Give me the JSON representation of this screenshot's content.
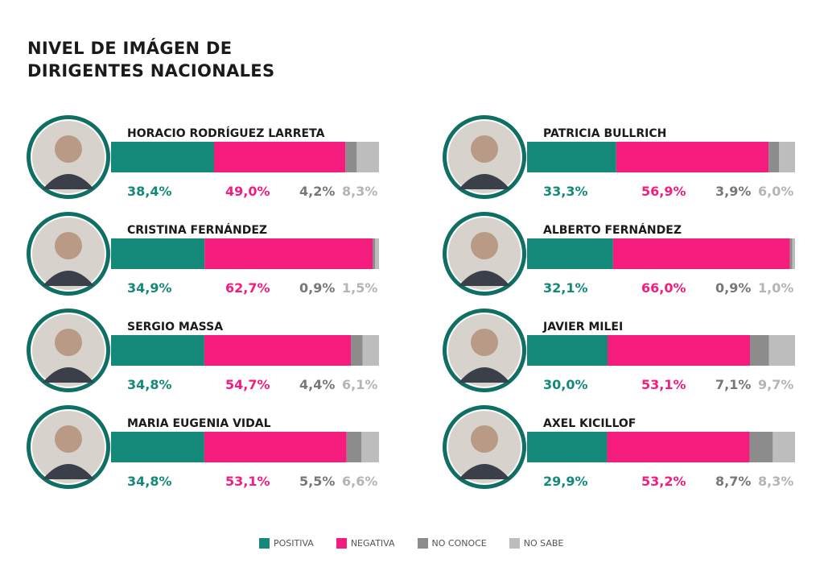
{
  "title_line1": "NIVEL DE IMÁGEN DE",
  "title_line2": "DIRIGENTES NACIONALES",
  "legend": [
    {
      "label": "POSITIVA",
      "color": "#14897A"
    },
    {
      "label": "NEGATIVA",
      "color": "#F41D7E"
    },
    {
      "label": "NO CONOCE",
      "color": "#8C8C8C"
    },
    {
      "label": "NO SABE",
      "color": "#BDBDBD"
    }
  ],
  "chart_data": {
    "type": "bar",
    "stacked": true,
    "orientation": "horizontal",
    "unit": "%",
    "categories": [
      "HORACIO RODRÍGUEZ LARRETA",
      "CRISTINA FERNÁNDEZ",
      "SERGIO MASSA",
      "MARIA EUGENIA VIDAL",
      "PATRICIA BULLRICH",
      "ALBERTO FERNÁNDEZ",
      "JAVIER MILEI",
      "AXEL KICILLOF"
    ],
    "series": [
      {
        "name": "POSITIVA",
        "color": "#14897A",
        "values": [
          38.4,
          34.9,
          34.8,
          34.8,
          33.3,
          32.1,
          30.0,
          29.9
        ],
        "labels": [
          "38,4%",
          "34,9%",
          "34,8%",
          "34,8%",
          "33,3%",
          "32,1%",
          "30,0%",
          "29,9%"
        ]
      },
      {
        "name": "NEGATIVA",
        "color": "#F41D7E",
        "values": [
          49.0,
          62.7,
          54.7,
          53.1,
          56.9,
          66.0,
          53.1,
          53.2
        ],
        "labels": [
          "49,0%",
          "62,7%",
          "54,7%",
          "53,1%",
          "56,9%",
          "66,0%",
          "53,1%",
          "53,2%"
        ]
      },
      {
        "name": "NO CONOCE",
        "color": "#8C8C8C",
        "values": [
          4.2,
          0.9,
          4.4,
          5.5,
          3.9,
          0.9,
          7.1,
          8.7
        ],
        "labels": [
          "4,2%",
          "0,9%",
          "4,4%",
          "5,5%",
          "3,9%",
          "0,9%",
          "7,1%",
          "8,7%"
        ]
      },
      {
        "name": "NO SABE",
        "color": "#BDBDBD",
        "values": [
          8.3,
          1.5,
          6.1,
          6.6,
          6.0,
          1.0,
          9.7,
          8.3
        ],
        "labels": [
          "8,3%",
          "1,5%",
          "6,1%",
          "6,6%",
          "6,0%",
          "1,0%",
          "9,7%",
          "8,3%"
        ]
      }
    ]
  }
}
